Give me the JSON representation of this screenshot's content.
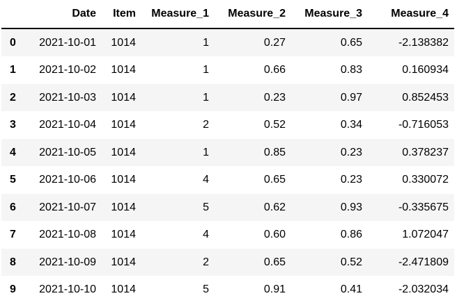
{
  "table": {
    "name": "pandas-dataframe",
    "columns": [
      "",
      "Date",
      "Item",
      "Measure_1",
      "Measure_2",
      "Measure_3",
      "Measure_4"
    ],
    "rows": [
      {
        "index": "0",
        "cells": [
          "2021-10-01",
          "1014",
          "1",
          "0.27",
          "0.65",
          "-2.138382"
        ]
      },
      {
        "index": "1",
        "cells": [
          "2021-10-02",
          "1014",
          "1",
          "0.66",
          "0.83",
          "0.160934"
        ]
      },
      {
        "index": "2",
        "cells": [
          "2021-10-03",
          "1014",
          "1",
          "0.23",
          "0.97",
          "0.852453"
        ]
      },
      {
        "index": "3",
        "cells": [
          "2021-10-04",
          "1014",
          "2",
          "0.52",
          "0.34",
          "-0.716053"
        ]
      },
      {
        "index": "4",
        "cells": [
          "2021-10-05",
          "1014",
          "1",
          "0.85",
          "0.23",
          "0.378237"
        ]
      },
      {
        "index": "5",
        "cells": [
          "2021-10-06",
          "1014",
          "4",
          "0.65",
          "0.23",
          "0.330072"
        ]
      },
      {
        "index": "6",
        "cells": [
          "2021-10-07",
          "1014",
          "5",
          "0.62",
          "0.93",
          "-0.335675"
        ]
      },
      {
        "index": "7",
        "cells": [
          "2021-10-08",
          "1014",
          "4",
          "0.60",
          "0.86",
          "1.072047"
        ]
      },
      {
        "index": "8",
        "cells": [
          "2021-10-09",
          "1014",
          "2",
          "0.65",
          "0.52",
          "-2.471809"
        ]
      },
      {
        "index": "9",
        "cells": [
          "2021-10-10",
          "1014",
          "5",
          "0.91",
          "0.41",
          "-2.032034"
        ]
      }
    ]
  },
  "colors": {
    "background": "#ffffff",
    "stripe": "#f5f5f5",
    "border": "#000000",
    "text": "#000000"
  }
}
